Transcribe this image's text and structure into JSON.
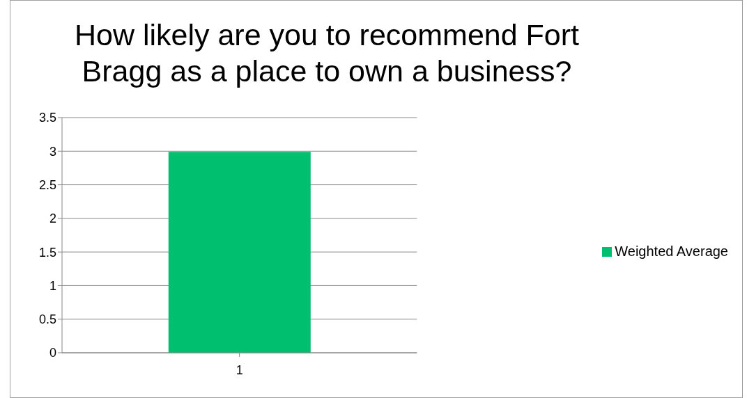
{
  "chart_data": {
    "type": "bar",
    "title": "How likely are you to recommend Fort Bragg as a place to own a business?",
    "categories": [
      "1"
    ],
    "series": [
      {
        "name": "Weighted Average",
        "color": "#00bf6f",
        "values": [
          2.99
        ]
      }
    ],
    "ylim": [
      0,
      3.5
    ],
    "yticks": [
      0,
      0.5,
      1,
      1.5,
      2,
      2.5,
      3,
      3.5
    ],
    "grid": "y",
    "legend": "right"
  }
}
